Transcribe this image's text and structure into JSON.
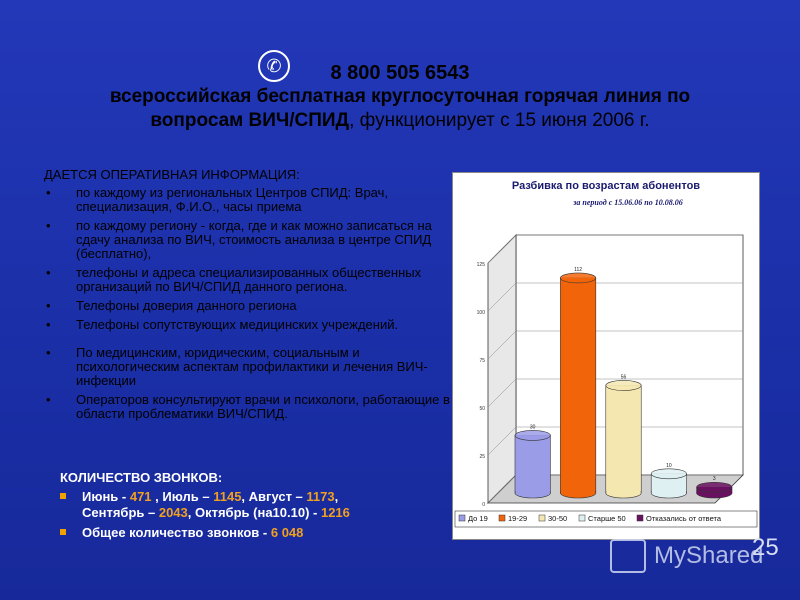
{
  "header": {
    "phone_icon": "phone-icon",
    "phone": "8 800 505 6543",
    "line1": "всероссийская бесплатная круглосуточная горячая линия по",
    "line2_bold": "вопросам ВИЧ/СПИД",
    "line2_rest": ", функционирует с 15 июня 2006 г."
  },
  "info": {
    "intro": "ДАЕТСЯ ОПЕРАТИВНАЯ ИНФОРМАЦИЯ:",
    "items": [
      "по каждому из региональных Центров СПИД: Врач, специализация, Ф.И.О., часы приема",
      "по каждому региону - когда, где и как можно записаться на сдачу анализа по ВИЧ, стоимость анализа в центре СПИД (бесплатно),",
      "телефоны и адреса специализированных общественных организаций по ВИЧ/СПИД данного региона.",
      "Телефоны доверия данного региона",
      "Телефоны сопутствующих медицинских учреждений.",
      "По медицинским, юридическим, социальным и психологическим аспектам профилактики и лечения ВИЧ-инфекции",
      "Операторов консультируют врачи и психологи, работающие в области проблематики ВИЧ/СПИД."
    ]
  },
  "calls": {
    "title": "КОЛИЧЕСТВО ЗВОНКОВ:",
    "line1_parts": [
      "Июнь - ",
      "471",
      " , Июль – ",
      "1145",
      ", Август – ",
      "1173",
      ","
    ],
    "line2_parts": [
      "Сентябрь – ",
      "2043",
      ", Октябрь (на10.10) - ",
      "1216"
    ],
    "total_parts": [
      "Общее количество звонков - ",
      "6 048"
    ]
  },
  "chart_data": {
    "type": "bar",
    "title": "Разбивка по возрастам абонентов",
    "subtitle": "за период с 15.06.06 по 10.08.06",
    "categories": [
      "До 19",
      "19-29",
      "30-50",
      "Старше 50",
      "Отказались от ответа"
    ],
    "values": [
      30,
      112,
      56,
      10,
      3
    ],
    "data_labels": [
      "30",
      "112",
      "56",
      "10",
      "3"
    ],
    "ylim": [
      0,
      125
    ],
    "yticks": [
      0,
      25,
      50,
      75,
      100,
      125
    ],
    "colors": [
      "#9a9ce8",
      "#f2640a",
      "#f4e8b0",
      "#dff0f2",
      "#6a1060"
    ],
    "legend_position": "bottom",
    "grid": true
  },
  "watermark": {
    "text": "MyShared",
    "icon": "presentation-icon"
  },
  "page_number": "25"
}
